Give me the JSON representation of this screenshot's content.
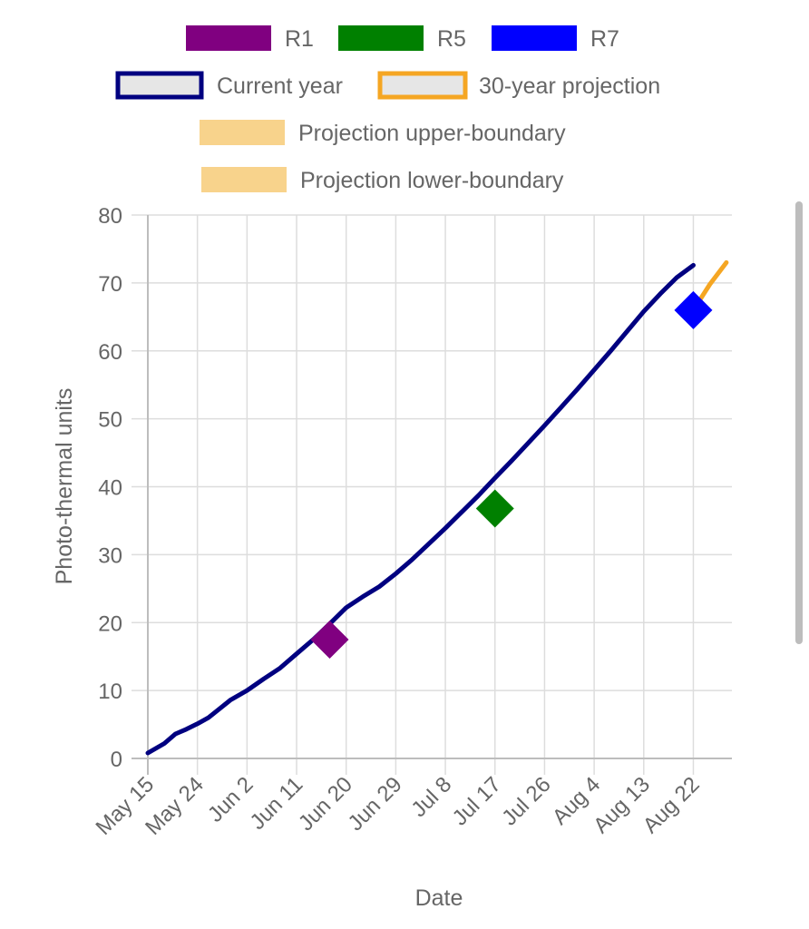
{
  "chart_data": {
    "type": "line",
    "title": "",
    "xlabel": "Date",
    "ylabel": "Photo-thermal units",
    "ylim": [
      0,
      80
    ],
    "yticks": [
      "0",
      "10",
      "20",
      "30",
      "40",
      "50",
      "60",
      "70",
      "80"
    ],
    "x_start": "May 15",
    "x_end": "Aug 29",
    "xticks": [
      "May 15",
      "May 24",
      "Jun 2",
      "Jun 11",
      "Jun 20",
      "Jun 29",
      "Jul 8",
      "Jul 17",
      "Jul 26",
      "Aug 4",
      "Aug 13",
      "Aug 22"
    ],
    "grid": true,
    "legend_position": "top",
    "legend": [
      {
        "label": "R1",
        "style": "box",
        "color": "#800080"
      },
      {
        "label": "R5",
        "style": "box",
        "color": "#008000"
      },
      {
        "label": "R7",
        "style": "box",
        "color": "#0000ff"
      },
      {
        "label": "Current year",
        "style": "outline",
        "color": "#000080"
      },
      {
        "label": "30-year projection",
        "style": "outline",
        "color": "#f5a623"
      },
      {
        "label": "Projection upper-boundary",
        "style": "band",
        "color": "#f8d38c"
      },
      {
        "label": "Projection lower-boundary",
        "style": "band",
        "color": "#f8d38c"
      }
    ],
    "series": [
      {
        "name": "Current year",
        "color": "#000080",
        "points": [
          [
            "May 15",
            0.8
          ],
          [
            "May 18",
            2.2
          ],
          [
            "May 20",
            3.6
          ],
          [
            "May 22",
            4.3
          ],
          [
            "May 24",
            5.1
          ],
          [
            "May 26",
            6.0
          ],
          [
            "May 28",
            7.3
          ],
          [
            "May 30",
            8.6
          ],
          [
            "Jun 2",
            10.0
          ],
          [
            "Jun 5",
            11.7
          ],
          [
            "Jun 8",
            13.3
          ],
          [
            "Jun 11",
            15.4
          ],
          [
            "Jun 14",
            17.5
          ],
          [
            "Jun 17",
            19.8
          ],
          [
            "Jun 20",
            22.2
          ],
          [
            "Jun 23",
            23.8
          ],
          [
            "Jun 26",
            25.3
          ],
          [
            "Jun 29",
            27.2
          ],
          [
            "Jul 2",
            29.3
          ],
          [
            "Jul 5",
            31.6
          ],
          [
            "Jul 8",
            33.9
          ],
          [
            "Jul 11",
            36.3
          ],
          [
            "Jul 14",
            38.7
          ],
          [
            "Jul 17",
            41.3
          ],
          [
            "Jul 20",
            43.8
          ],
          [
            "Jul 23",
            46.4
          ],
          [
            "Jul 26",
            49.0
          ],
          [
            "Jul 29",
            51.7
          ],
          [
            "Aug 1",
            54.4
          ],
          [
            "Aug 4",
            57.2
          ],
          [
            "Aug 7",
            60.0
          ],
          [
            "Aug 10",
            62.9
          ],
          [
            "Aug 13",
            65.8
          ],
          [
            "Aug 16",
            68.4
          ],
          [
            "Aug 19",
            70.8
          ],
          [
            "Aug 22",
            72.6
          ]
        ]
      },
      {
        "name": "30-year projection",
        "color": "#f5a623",
        "points": [
          [
            "Aug 22",
            66.0
          ],
          [
            "Aug 25",
            69.8
          ],
          [
            "Aug 28",
            73.0
          ]
        ]
      }
    ],
    "markers": [
      {
        "label": "R1",
        "date": "Jun 17",
        "value": 17.5,
        "color": "#800080"
      },
      {
        "label": "R5",
        "date": "Jul 17",
        "value": 36.8,
        "color": "#008000"
      },
      {
        "label": "R7",
        "date": "Aug 22",
        "value": 66.0,
        "color": "#0000ff"
      }
    ]
  }
}
